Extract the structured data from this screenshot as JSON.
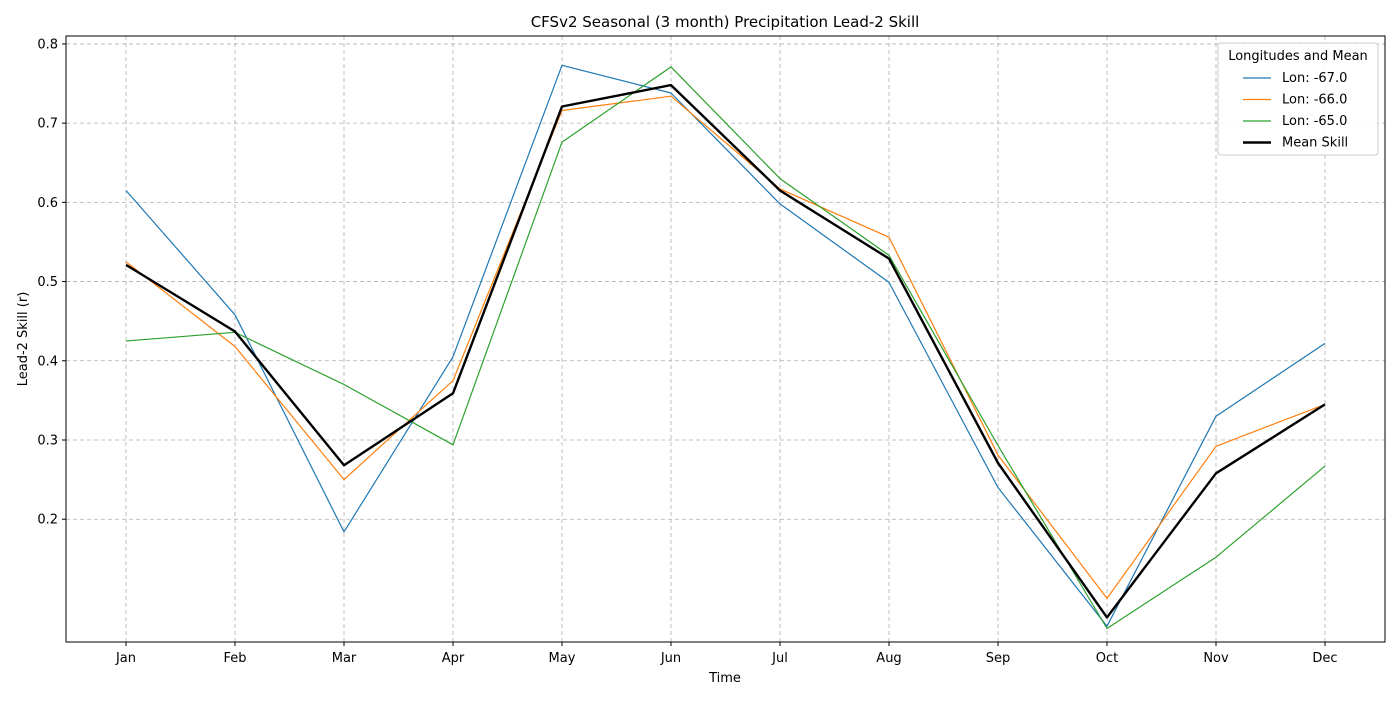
{
  "chart_data": {
    "type": "line",
    "title": "CFSv2 Seasonal (3 month) Precipitation Lead-2 Skill",
    "xlabel": "Time",
    "ylabel": "Lead-2 Skill (r)",
    "categories": [
      "Jan",
      "Feb",
      "Mar",
      "Apr",
      "May",
      "Jun",
      "Jul",
      "Aug",
      "Sep",
      "Oct",
      "Nov",
      "Dec"
    ],
    "ylim": [
      0.045,
      0.81
    ],
    "yticks": [
      0.2,
      0.3,
      0.4,
      0.5,
      0.6,
      0.7,
      0.8
    ],
    "ytick_labels": [
      "0.2",
      "0.3",
      "0.4",
      "0.5",
      "0.6",
      "0.7",
      "0.8"
    ],
    "grid": true,
    "legend": {
      "title": "Longitudes and Mean",
      "placement": "top-right"
    },
    "series": [
      {
        "name": "Lon: -67.0",
        "color": "#1f77b4",
        "width": "thin",
        "values": [
          0.615,
          0.458,
          0.184,
          0.405,
          0.773,
          0.738,
          0.598,
          0.499,
          0.24,
          0.065,
          0.33,
          0.422
        ]
      },
      {
        "name": "Lon: -66.0",
        "color": "#ff7f0e",
        "width": "thin",
        "values": [
          0.525,
          0.418,
          0.25,
          0.375,
          0.716,
          0.734,
          0.617,
          0.556,
          0.281,
          0.1,
          0.292,
          0.345
        ]
      },
      {
        "name": "Lon: -65.0",
        "color": "#2ca02c",
        "width": "thin",
        "values": [
          0.425,
          0.436,
          0.37,
          0.294,
          0.676,
          0.771,
          0.63,
          0.533,
          0.293,
          0.062,
          0.152,
          0.267
        ]
      },
      {
        "name": "Mean Skill",
        "color": "#000000",
        "width": "thick",
        "values": [
          0.521,
          0.437,
          0.268,
          0.359,
          0.721,
          0.748,
          0.615,
          0.529,
          0.271,
          0.076,
          0.258,
          0.345
        ]
      }
    ]
  }
}
